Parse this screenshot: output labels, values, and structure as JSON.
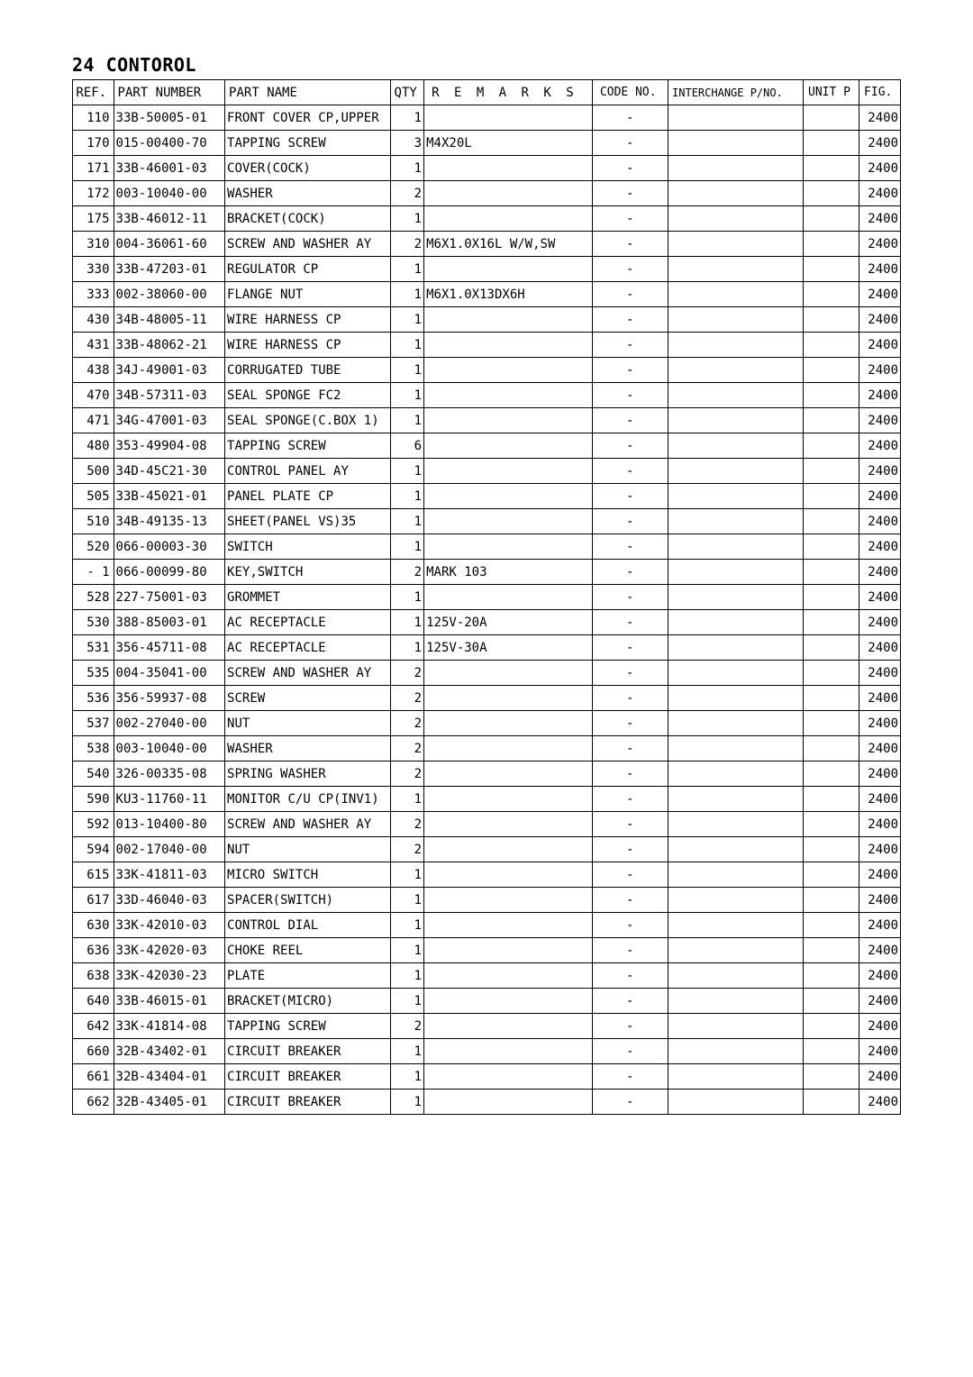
{
  "title": "24 CONTOROL",
  "columns": [
    "REF.",
    "PART NUMBER",
    "PART NAME",
    "QTY",
    "R E M A R K S",
    "CODE NO.",
    "INTERCHANGE P/NO.",
    "UNIT P",
    "FIG."
  ],
  "rows": [
    {
      "ref": "110",
      "part": "33B-50005-01",
      "name": "FRONT COVER CP,UPPER",
      "qty": "1",
      "rem": "",
      "code": "-",
      "inter": "",
      "unit": "",
      "fig": "2400"
    },
    {
      "ref": "170",
      "part": "015-00400-70",
      "name": "TAPPING SCREW",
      "qty": "3",
      "rem": "M4X20L",
      "code": "-",
      "inter": "",
      "unit": "",
      "fig": "2400"
    },
    {
      "ref": "171",
      "part": "33B-46001-03",
      "name": "COVER(COCK)",
      "qty": "1",
      "rem": "",
      "code": "-",
      "inter": "",
      "unit": "",
      "fig": "2400"
    },
    {
      "ref": "172",
      "part": "003-10040-00",
      "name": "WASHER",
      "qty": "2",
      "rem": "",
      "code": "-",
      "inter": "",
      "unit": "",
      "fig": "2400"
    },
    {
      "ref": "175",
      "part": "33B-46012-11",
      "name": "BRACKET(COCK)",
      "qty": "1",
      "rem": "",
      "code": "-",
      "inter": "",
      "unit": "",
      "fig": "2400"
    },
    {
      "ref": "310",
      "part": "004-36061-60",
      "name": "SCREW AND WASHER AY",
      "qty": "2",
      "rem": "M6X1.0X16L W/W,SW",
      "code": "-",
      "inter": "",
      "unit": "",
      "fig": "2400"
    },
    {
      "ref": "330",
      "part": "33B-47203-01",
      "name": "REGULATOR CP",
      "qty": "1",
      "rem": "",
      "code": "-",
      "inter": "",
      "unit": "",
      "fig": "2400"
    },
    {
      "ref": "333",
      "part": "002-38060-00",
      "name": "FLANGE NUT",
      "qty": "1",
      "rem": "M6X1.0X13DX6H",
      "code": "-",
      "inter": "",
      "unit": "",
      "fig": "2400"
    },
    {
      "ref": "430",
      "part": "34B-48005-11",
      "name": "WIRE HARNESS CP",
      "qty": "1",
      "rem": "",
      "code": "-",
      "inter": "",
      "unit": "",
      "fig": "2400"
    },
    {
      "ref": "431",
      "part": "33B-48062-21",
      "name": "WIRE HARNESS CP",
      "qty": "1",
      "rem": "",
      "code": "-",
      "inter": "",
      "unit": "",
      "fig": "2400"
    },
    {
      "ref": "438",
      "part": "34J-49001-03",
      "name": "CORRUGATED TUBE",
      "qty": "1",
      "rem": "",
      "code": "-",
      "inter": "",
      "unit": "",
      "fig": "2400"
    },
    {
      "ref": "470",
      "part": "34B-57311-03",
      "name": "SEAL SPONGE FC2",
      "qty": "1",
      "rem": "",
      "code": "-",
      "inter": "",
      "unit": "",
      "fig": "2400"
    },
    {
      "ref": "471",
      "part": "34G-47001-03",
      "name": "SEAL SPONGE(C.BOX 1)",
      "qty": "1",
      "rem": "",
      "code": "-",
      "inter": "",
      "unit": "",
      "fig": "2400"
    },
    {
      "ref": "480",
      "part": "353-49904-08",
      "name": "TAPPING SCREW",
      "qty": "6",
      "rem": "",
      "code": "-",
      "inter": "",
      "unit": "",
      "fig": "2400"
    },
    {
      "ref": "500",
      "part": "34D-45C21-30",
      "name": "CONTROL PANEL AY",
      "qty": "1",
      "rem": "",
      "code": "-",
      "inter": "",
      "unit": "",
      "fig": "2400"
    },
    {
      "ref": "505",
      "part": "33B-45021-01",
      "name": "PANEL PLATE CP",
      "qty": "1",
      "rem": "",
      "code": "-",
      "inter": "",
      "unit": "",
      "fig": "2400"
    },
    {
      "ref": "510",
      "part": "34B-49135-13",
      "name": "SHEET(PANEL VS)35",
      "qty": "1",
      "rem": "",
      "code": "-",
      "inter": "",
      "unit": "",
      "fig": "2400"
    },
    {
      "ref": "520",
      "part": "066-00003-30",
      "name": "SWITCH",
      "qty": "1",
      "rem": "",
      "code": "-",
      "inter": "",
      "unit": "",
      "fig": "2400"
    },
    {
      "ref": "-  1",
      "part": "066-00099-80",
      "name": "KEY,SWITCH",
      "qty": "2",
      "rem": "MARK 103",
      "code": "-",
      "inter": "",
      "unit": "",
      "fig": "2400"
    },
    {
      "ref": "528",
      "part": "227-75001-03",
      "name": "GROMMET",
      "qty": "1",
      "rem": "",
      "code": "-",
      "inter": "",
      "unit": "",
      "fig": "2400"
    },
    {
      "ref": "530",
      "part": "388-85003-01",
      "name": "AC RECEPTACLE",
      "qty": "1",
      "rem": "125V-20A",
      "code": "-",
      "inter": "",
      "unit": "",
      "fig": "2400"
    },
    {
      "ref": "531",
      "part": "356-45711-08",
      "name": "AC RECEPTACLE",
      "qty": "1",
      "rem": "125V-30A",
      "code": "-",
      "inter": "",
      "unit": "",
      "fig": "2400"
    },
    {
      "ref": "535",
      "part": "004-35041-00",
      "name": "SCREW AND WASHER AY",
      "qty": "2",
      "rem": "",
      "code": "-",
      "inter": "",
      "unit": "",
      "fig": "2400"
    },
    {
      "ref": "536",
      "part": "356-59937-08",
      "name": "SCREW",
      "qty": "2",
      "rem": "",
      "code": "-",
      "inter": "",
      "unit": "",
      "fig": "2400"
    },
    {
      "ref": "537",
      "part": "002-27040-00",
      "name": "NUT",
      "qty": "2",
      "rem": "",
      "code": "-",
      "inter": "",
      "unit": "",
      "fig": "2400"
    },
    {
      "ref": "538",
      "part": "003-10040-00",
      "name": "WASHER",
      "qty": "2",
      "rem": "",
      "code": "-",
      "inter": "",
      "unit": "",
      "fig": "2400"
    },
    {
      "ref": "540",
      "part": "326-00335-08",
      "name": "SPRING WASHER",
      "qty": "2",
      "rem": "",
      "code": "-",
      "inter": "",
      "unit": "",
      "fig": "2400"
    },
    {
      "ref": "590",
      "part": "KU3-11760-11",
      "name": "MONITOR C/U CP(INV1)",
      "qty": "1",
      "rem": "",
      "code": "-",
      "inter": "",
      "unit": "",
      "fig": "2400"
    },
    {
      "ref": "592",
      "part": "013-10400-80",
      "name": "SCREW AND WASHER AY",
      "qty": "2",
      "rem": "",
      "code": "-",
      "inter": "",
      "unit": "",
      "fig": "2400"
    },
    {
      "ref": "594",
      "part": "002-17040-00",
      "name": "NUT",
      "qty": "2",
      "rem": "",
      "code": "-",
      "inter": "",
      "unit": "",
      "fig": "2400"
    },
    {
      "ref": "615",
      "part": "33K-41811-03",
      "name": "MICRO SWITCH",
      "qty": "1",
      "rem": "",
      "code": "-",
      "inter": "",
      "unit": "",
      "fig": "2400"
    },
    {
      "ref": "617",
      "part": "33D-46040-03",
      "name": "SPACER(SWITCH)",
      "qty": "1",
      "rem": "",
      "code": "-",
      "inter": "",
      "unit": "",
      "fig": "2400"
    },
    {
      "ref": "630",
      "part": "33K-42010-03",
      "name": "CONTROL DIAL",
      "qty": "1",
      "rem": "",
      "code": "-",
      "inter": "",
      "unit": "",
      "fig": "2400"
    },
    {
      "ref": "636",
      "part": "33K-42020-03",
      "name": "CHOKE REEL",
      "qty": "1",
      "rem": "",
      "code": "-",
      "inter": "",
      "unit": "",
      "fig": "2400"
    },
    {
      "ref": "638",
      "part": "33K-42030-23",
      "name": "PLATE",
      "qty": "1",
      "rem": "",
      "code": "-",
      "inter": "",
      "unit": "",
      "fig": "2400"
    },
    {
      "ref": "640",
      "part": "33B-46015-01",
      "name": "BRACKET(MICRO)",
      "qty": "1",
      "rem": "",
      "code": "-",
      "inter": "",
      "unit": "",
      "fig": "2400"
    },
    {
      "ref": "642",
      "part": "33K-41814-08",
      "name": "TAPPING SCREW",
      "qty": "2",
      "rem": "",
      "code": "-",
      "inter": "",
      "unit": "",
      "fig": "2400"
    },
    {
      "ref": "660",
      "part": "32B-43402-01",
      "name": "CIRCUIT BREAKER",
      "qty": "1",
      "rem": "",
      "code": "-",
      "inter": "",
      "unit": "",
      "fig": "2400"
    },
    {
      "ref": "661",
      "part": "32B-43404-01",
      "name": "CIRCUIT BREAKER",
      "qty": "1",
      "rem": "",
      "code": "-",
      "inter": "",
      "unit": "",
      "fig": "2400"
    },
    {
      "ref": "662",
      "part": "32B-43405-01",
      "name": "CIRCUIT BREAKER",
      "qty": "1",
      "rem": "",
      "code": "-",
      "inter": "",
      "unit": "",
      "fig": "2400"
    }
  ]
}
